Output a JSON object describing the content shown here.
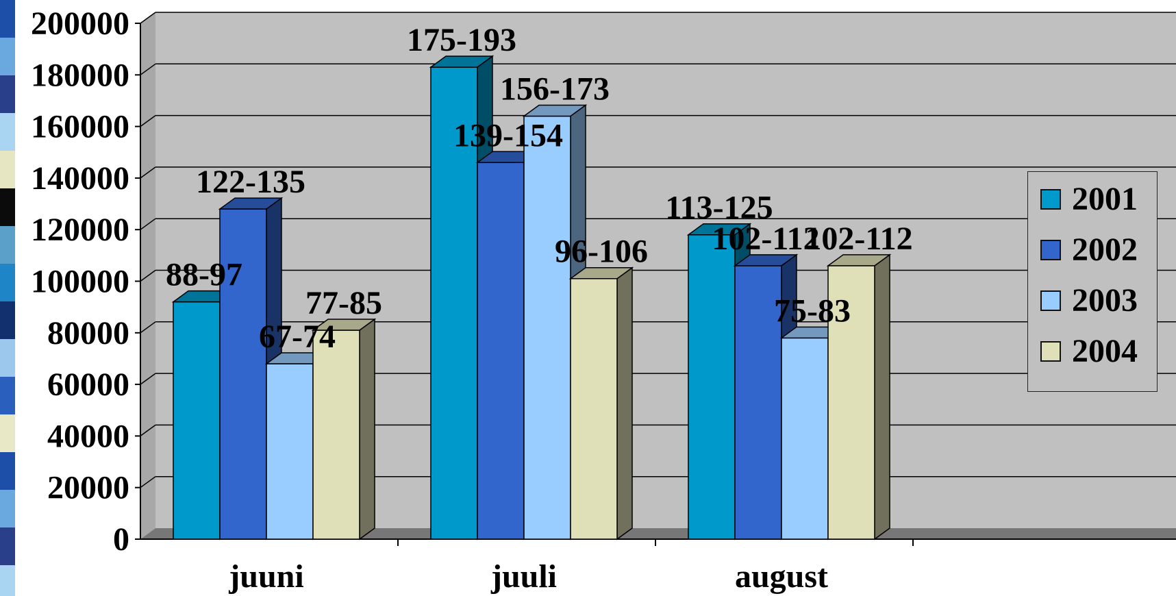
{
  "chart_data": {
    "type": "bar",
    "title": "",
    "xlabel": "",
    "ylabel": "",
    "categories": [
      "juuni",
      "juuli",
      "august"
    ],
    "ylim": [
      0,
      200000
    ],
    "yticks": [
      0,
      20000,
      40000,
      60000,
      80000,
      100000,
      120000,
      140000,
      160000,
      180000,
      200000
    ],
    "grid": true,
    "legend_position": "right",
    "series": [
      {
        "name": "2001",
        "color": "#0099cc",
        "values": [
          92000,
          183000,
          118000
        ],
        "labels": [
          "88-97",
          "175-193",
          "113-125"
        ]
      },
      {
        "name": "2002",
        "color": "#3366cc",
        "values": [
          128000,
          146000,
          106000
        ],
        "labels": [
          "122-135",
          "139-154",
          "102-112"
        ]
      },
      {
        "name": "2003",
        "color": "#99ccff",
        "values": [
          68000,
          164000,
          78000
        ],
        "labels": [
          "67-74",
          "156-173",
          "75-83"
        ]
      },
      {
        "name": "2004",
        "color": "#e0e0b8",
        "values": [
          81000,
          101000,
          106000
        ],
        "labels": [
          "77-85",
          "96-106",
          "102-112"
        ]
      }
    ]
  }
}
